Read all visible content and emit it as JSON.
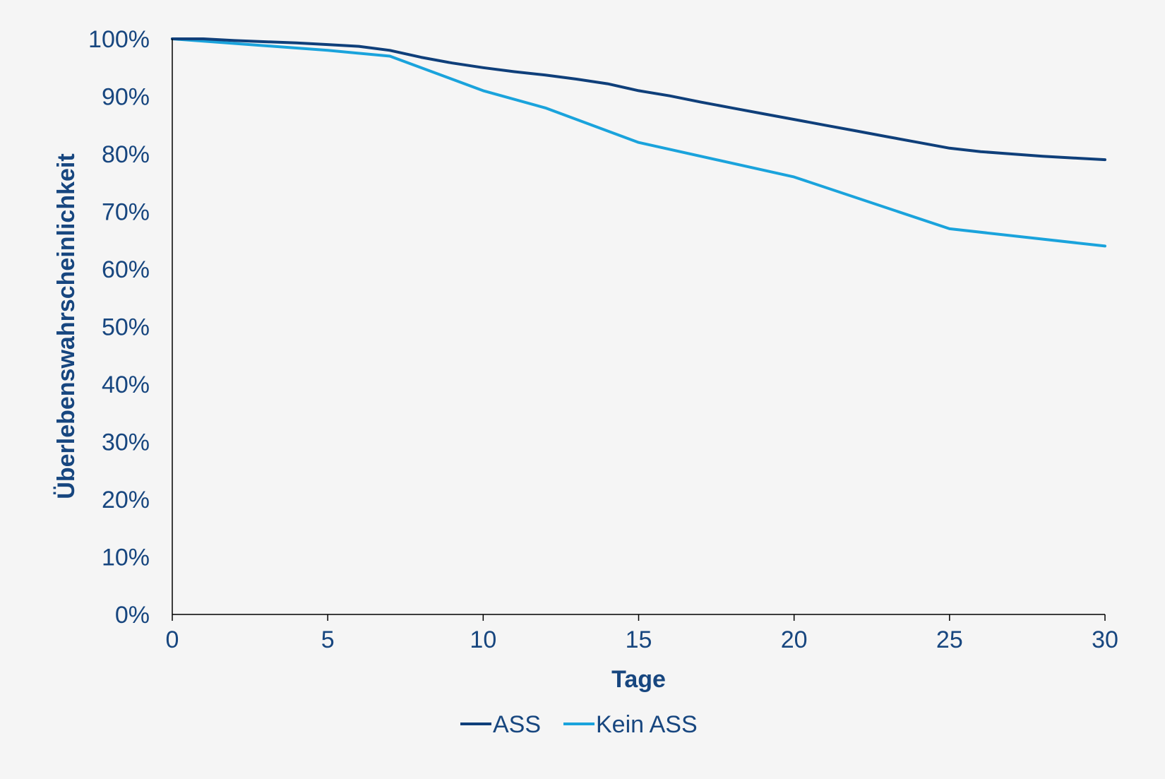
{
  "chart_data": {
    "type": "line",
    "title": "",
    "xlabel": "Tage",
    "ylabel": "Überlebenswahrscheinlichkeit",
    "xlim": [
      0,
      30
    ],
    "ylim": [
      0,
      100
    ],
    "x_ticks": [
      0,
      5,
      10,
      15,
      20,
      25,
      30
    ],
    "x_tick_labels": [
      "0",
      "5",
      "10",
      "15",
      "20",
      "25",
      "30"
    ],
    "y_ticks": [
      0,
      10,
      20,
      30,
      40,
      50,
      60,
      70,
      80,
      90,
      100
    ],
    "y_tick_labels": [
      "0%",
      "10%",
      "20%",
      "30%",
      "40%",
      "50%",
      "60%",
      "70%",
      "80%",
      "90%",
      "100%"
    ],
    "grid": false,
    "legend_position": "bottom",
    "text_color": "#17467f",
    "series": [
      {
        "name": "ASS",
        "color": "#0f3f7a",
        "x": [
          0,
          1,
          2,
          3,
          4,
          5,
          6,
          7,
          8,
          9,
          10,
          11,
          12,
          13,
          14,
          15,
          16,
          17,
          18,
          19,
          20,
          21,
          22,
          23,
          24,
          25,
          26,
          27,
          28,
          29,
          30
        ],
        "values": [
          100,
          100,
          99.7,
          99.5,
          99.3,
          99,
          98.7,
          98,
          96.8,
          95.8,
          95,
          94.3,
          93.7,
          93,
          92.2,
          91,
          90.1,
          89,
          88,
          87,
          86,
          85,
          84,
          83,
          82,
          81,
          80.4,
          80,
          79.6,
          79.3,
          79
        ]
      },
      {
        "name": "Kein ASS",
        "color": "#1aa3dc",
        "x": [
          0,
          5,
          7,
          10,
          12,
          15,
          20,
          25,
          30
        ],
        "values": [
          100,
          98,
          97,
          91,
          88,
          82,
          76,
          67,
          64
        ]
      }
    ]
  }
}
